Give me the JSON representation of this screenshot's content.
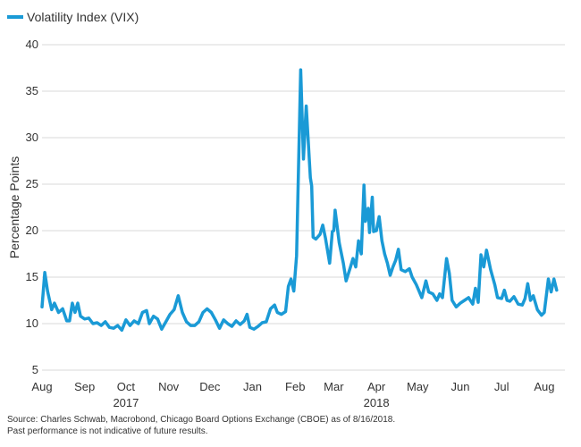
{
  "source": {
    "line1": "Source: Charles Schwab, Macrobond, Chicago Board Options Exchange (CBOE) as of 8/16/2018.",
    "line2": "Past performance is not indicative of future results."
  },
  "colors": {
    "series": "#1a9ad6",
    "grid": "#d9d9d9",
    "text": "#333333"
  },
  "chart_data": {
    "type": "line",
    "title": "",
    "xlabel": "",
    "ylabel": "Percentage Points",
    "ylim": [
      5,
      40
    ],
    "yticks": [
      5,
      10,
      15,
      20,
      25,
      30,
      35,
      40
    ],
    "xlim": [
      "2017-08-01",
      "2018-08-16"
    ],
    "grid": true,
    "legend_position": "top-left",
    "month_ticks": [
      {
        "label": "Aug",
        "date": "2017-08-01"
      },
      {
        "label": "Sep",
        "date": "2017-09-01"
      },
      {
        "label": "Oct",
        "date": "2017-10-01"
      },
      {
        "label": "Nov",
        "date": "2017-11-01"
      },
      {
        "label": "Dec",
        "date": "2017-12-01"
      },
      {
        "label": "Jan",
        "date": "2018-01-01"
      },
      {
        "label": "Feb",
        "date": "2018-02-01"
      },
      {
        "label": "Mar",
        "date": "2018-03-01"
      },
      {
        "label": "Apr",
        "date": "2018-04-01"
      },
      {
        "label": "May",
        "date": "2018-05-01"
      },
      {
        "label": "Jun",
        "date": "2018-06-01"
      },
      {
        "label": "Jul",
        "date": "2018-07-01"
      },
      {
        "label": "Aug",
        "date": "2018-08-01"
      }
    ],
    "year_labels": [
      {
        "label": "2017",
        "date": "2017-10-01"
      },
      {
        "label": "2018",
        "date": "2018-04-01"
      }
    ],
    "series": [
      {
        "name": "Volatility Index (VIX)",
        "color": "#1a9ad6",
        "points": [
          [
            "2017-08-01",
            11.8
          ],
          [
            "2017-08-03",
            15.5
          ],
          [
            "2017-08-05",
            13.5
          ],
          [
            "2017-08-08",
            11.5
          ],
          [
            "2017-08-10",
            12.2
          ],
          [
            "2017-08-13",
            11.2
          ],
          [
            "2017-08-16",
            11.6
          ],
          [
            "2017-08-19",
            10.3
          ],
          [
            "2017-08-21",
            10.3
          ],
          [
            "2017-08-23",
            12.2
          ],
          [
            "2017-08-25",
            11.2
          ],
          [
            "2017-08-27",
            12.2
          ],
          [
            "2017-08-29",
            10.8
          ],
          [
            "2017-09-01",
            10.5
          ],
          [
            "2017-09-04",
            10.6
          ],
          [
            "2017-09-07",
            10.0
          ],
          [
            "2017-09-10",
            10.1
          ],
          [
            "2017-09-13",
            9.8
          ],
          [
            "2017-09-16",
            10.2
          ],
          [
            "2017-09-19",
            9.6
          ],
          [
            "2017-09-22",
            9.5
          ],
          [
            "2017-09-25",
            9.8
          ],
          [
            "2017-09-28",
            9.3
          ],
          [
            "2017-10-01",
            10.4
          ],
          [
            "2017-10-04",
            9.8
          ],
          [
            "2017-10-07",
            10.3
          ],
          [
            "2017-10-10",
            10.0
          ],
          [
            "2017-10-13",
            11.2
          ],
          [
            "2017-10-16",
            11.4
          ],
          [
            "2017-10-18",
            10.0
          ],
          [
            "2017-10-21",
            10.8
          ],
          [
            "2017-10-24",
            10.5
          ],
          [
            "2017-10-27",
            9.4
          ],
          [
            "2017-10-30",
            10.2
          ],
          [
            "2017-11-02",
            11.0
          ],
          [
            "2017-11-05",
            11.5
          ],
          [
            "2017-11-08",
            13.0
          ],
          [
            "2017-11-11",
            11.2
          ],
          [
            "2017-11-14",
            10.2
          ],
          [
            "2017-11-17",
            9.8
          ],
          [
            "2017-11-20",
            9.8
          ],
          [
            "2017-11-23",
            10.2
          ],
          [
            "2017-11-26",
            11.2
          ],
          [
            "2017-11-29",
            11.6
          ],
          [
            "2017-12-02",
            11.2
          ],
          [
            "2017-12-05",
            10.4
          ],
          [
            "2017-12-08",
            9.5
          ],
          [
            "2017-12-11",
            10.4
          ],
          [
            "2017-12-14",
            10.0
          ],
          [
            "2017-12-17",
            9.7
          ],
          [
            "2017-12-20",
            10.3
          ],
          [
            "2017-12-23",
            9.9
          ],
          [
            "2017-12-26",
            10.3
          ],
          [
            "2017-12-28",
            11.0
          ],
          [
            "2017-12-30",
            9.6
          ],
          [
            "2018-01-02",
            9.4
          ],
          [
            "2018-01-05",
            9.7
          ],
          [
            "2018-01-08",
            10.1
          ],
          [
            "2018-01-11",
            10.2
          ],
          [
            "2018-01-14",
            11.6
          ],
          [
            "2018-01-17",
            12.0
          ],
          [
            "2018-01-19",
            11.2
          ],
          [
            "2018-01-22",
            11.0
          ],
          [
            "2018-01-25",
            11.3
          ],
          [
            "2018-01-27",
            14.0
          ],
          [
            "2018-01-29",
            14.8
          ],
          [
            "2018-01-31",
            13.5
          ],
          [
            "2018-02-02",
            17.3
          ],
          [
            "2018-02-05",
            37.3
          ],
          [
            "2018-02-07",
            27.7
          ],
          [
            "2018-02-09",
            33.4
          ],
          [
            "2018-02-12",
            25.7
          ],
          [
            "2018-02-13",
            24.8
          ],
          [
            "2018-02-14",
            19.3
          ],
          [
            "2018-02-16",
            19.1
          ],
          [
            "2018-02-19",
            19.6
          ],
          [
            "2018-02-21",
            20.6
          ],
          [
            "2018-02-23",
            19.2
          ],
          [
            "2018-02-26",
            16.5
          ],
          [
            "2018-02-28",
            19.9
          ],
          [
            "2018-03-01",
            20.0
          ],
          [
            "2018-03-02",
            22.2
          ],
          [
            "2018-03-05",
            18.7
          ],
          [
            "2018-03-08",
            16.5
          ],
          [
            "2018-03-10",
            14.6
          ],
          [
            "2018-03-13",
            16.0
          ],
          [
            "2018-03-15",
            17.0
          ],
          [
            "2018-03-17",
            16.1
          ],
          [
            "2018-03-19",
            18.9
          ],
          [
            "2018-03-21",
            17.5
          ],
          [
            "2018-03-23",
            24.9
          ],
          [
            "2018-03-24",
            21.0
          ],
          [
            "2018-03-26",
            22.4
          ],
          [
            "2018-03-27",
            19.8
          ],
          [
            "2018-03-29",
            23.6
          ],
          [
            "2018-03-30",
            19.9
          ],
          [
            "2018-04-01",
            20.0
          ],
          [
            "2018-04-03",
            21.5
          ],
          [
            "2018-04-05",
            18.9
          ],
          [
            "2018-04-07",
            17.5
          ],
          [
            "2018-04-09",
            16.5
          ],
          [
            "2018-04-11",
            15.2
          ],
          [
            "2018-04-13",
            16.1
          ],
          [
            "2018-04-15",
            16.8
          ],
          [
            "2018-04-17",
            18.0
          ],
          [
            "2018-04-19",
            15.8
          ],
          [
            "2018-04-22",
            15.6
          ],
          [
            "2018-04-25",
            15.9
          ],
          [
            "2018-04-27",
            15.0
          ],
          [
            "2018-04-30",
            14.2
          ],
          [
            "2018-05-02",
            13.5
          ],
          [
            "2018-05-04",
            12.8
          ],
          [
            "2018-05-07",
            14.6
          ],
          [
            "2018-05-09",
            13.4
          ],
          [
            "2018-05-12",
            13.2
          ],
          [
            "2018-05-15",
            12.5
          ],
          [
            "2018-05-17",
            13.2
          ],
          [
            "2018-05-19",
            12.8
          ],
          [
            "2018-05-22",
            17.0
          ],
          [
            "2018-05-24",
            15.4
          ],
          [
            "2018-05-26",
            12.5
          ],
          [
            "2018-05-29",
            11.8
          ],
          [
            "2018-06-01",
            12.2
          ],
          [
            "2018-06-04",
            12.5
          ],
          [
            "2018-06-07",
            12.8
          ],
          [
            "2018-06-10",
            12.1
          ],
          [
            "2018-06-12",
            13.8
          ],
          [
            "2018-06-14",
            12.3
          ],
          [
            "2018-06-16",
            17.4
          ],
          [
            "2018-06-18",
            16.1
          ],
          [
            "2018-06-20",
            17.9
          ],
          [
            "2018-06-23",
            15.8
          ],
          [
            "2018-06-26",
            14.2
          ],
          [
            "2018-06-28",
            12.8
          ],
          [
            "2018-07-01",
            12.7
          ],
          [
            "2018-07-03",
            13.6
          ],
          [
            "2018-07-05",
            12.5
          ],
          [
            "2018-07-07",
            12.4
          ],
          [
            "2018-07-10",
            12.9
          ],
          [
            "2018-07-13",
            12.1
          ],
          [
            "2018-07-16",
            12.0
          ],
          [
            "2018-07-18",
            12.7
          ],
          [
            "2018-07-20",
            14.3
          ],
          [
            "2018-07-22",
            12.5
          ],
          [
            "2018-07-24",
            13.0
          ],
          [
            "2018-07-27",
            11.5
          ],
          [
            "2018-07-30",
            10.9
          ],
          [
            "2018-08-01",
            11.2
          ],
          [
            "2018-08-04",
            14.8
          ],
          [
            "2018-08-06",
            13.4
          ],
          [
            "2018-08-08",
            14.8
          ],
          [
            "2018-08-10",
            13.6
          ]
        ]
      }
    ]
  }
}
